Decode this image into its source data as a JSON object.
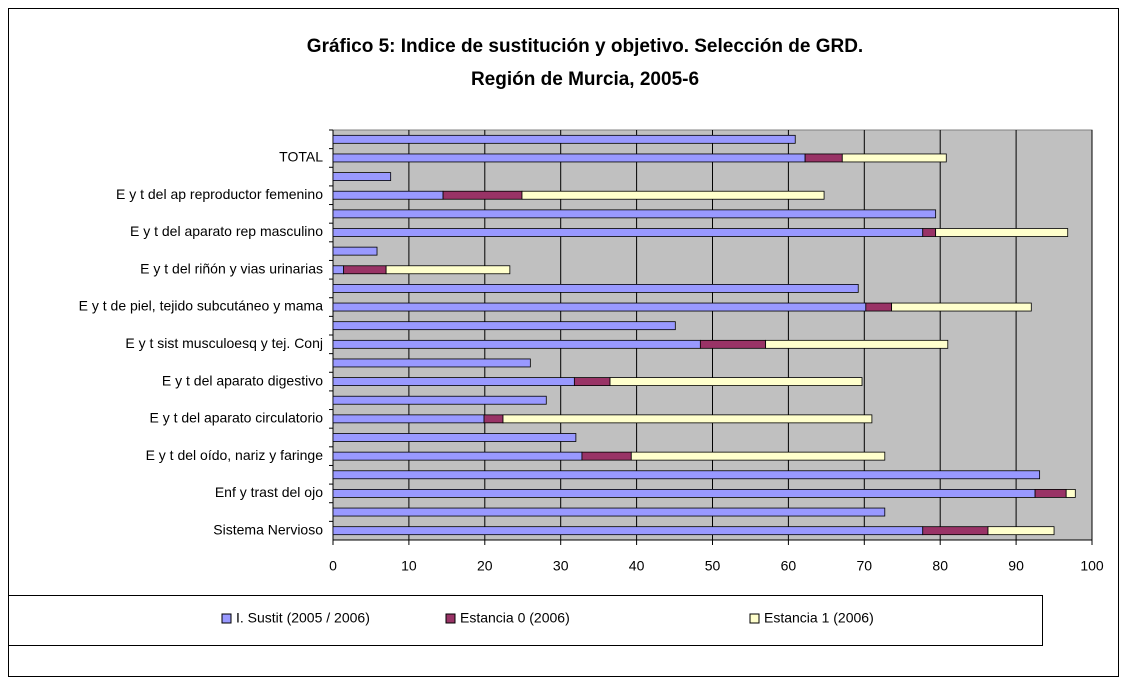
{
  "chart_data": {
    "type": "bar",
    "orientation": "horizontal",
    "stacked": true,
    "title": [
      "Gráfico 5: Indice de sustitución y objetivo. Selección de GRD.",
      "Región de Murcia, 2005-6"
    ],
    "categories": [
      null,
      "TOTAL",
      null,
      "E y t del ap reproductor femenino",
      null,
      "E y t del aparato rep masculino",
      null,
      "E y t del riñón y vias urinarias",
      null,
      "E y t de piel, tejido subcutáneo y mama",
      null,
      "E y t sist musculoesq y tej. Conj",
      null,
      "E y t del aparato digestivo",
      null,
      "E y t del aparato circulatorio",
      null,
      "E y t del oído, nariz y faringe",
      null,
      "Enf y trast del ojo",
      null,
      "Sistema Nervioso"
    ],
    "series": [
      {
        "name": "I. Sustit (2005 / 2006)",
        "color": "#9999ff",
        "values": [
          60.9,
          62.2,
          7.6,
          14.5,
          79.4,
          77.7,
          5.8,
          1.4,
          69.2,
          70.2,
          45.1,
          48.4,
          26.0,
          31.8,
          28.1,
          19.9,
          32.0,
          32.8,
          93.1,
          92.5,
          72.7,
          77.7
        ]
      },
      {
        "name": "Estancia 0 (2006)",
        "color": "#993366",
        "values": [
          null,
          4.9,
          null,
          10.4,
          null,
          1.7,
          null,
          5.6,
          null,
          3.4,
          null,
          8.6,
          null,
          4.7,
          null,
          2.5,
          null,
          6.5,
          null,
          4.1,
          null,
          8.6
        ]
      },
      {
        "name": "Estancia 1 (2006)",
        "color": "#ffffcc",
        "values": [
          null,
          13.7,
          null,
          39.8,
          null,
          17.4,
          null,
          16.3,
          null,
          18.4,
          null,
          24.0,
          null,
          33.2,
          null,
          48.6,
          null,
          33.4,
          null,
          1.2,
          null,
          8.7
        ]
      }
    ],
    "xlim": [
      0,
      100
    ],
    "xticks": [
      0,
      10,
      20,
      30,
      40,
      50,
      60,
      70,
      80,
      90,
      100
    ],
    "grid": true,
    "legend": "bottom"
  }
}
